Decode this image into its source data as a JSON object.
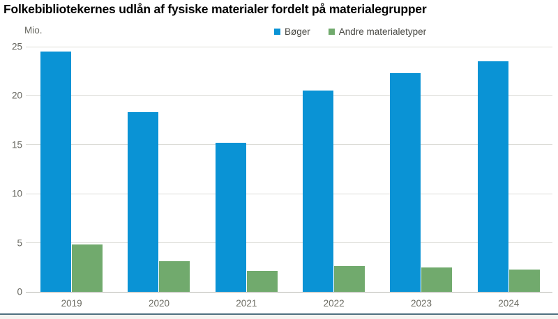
{
  "chart_data": {
    "type": "bar",
    "title": "Folkebibliotekernes udlån af fysiske materialer fordelt på materialegrupper",
    "unit_label": "Mio.",
    "xlabel": "",
    "ylabel": "Mio.",
    "categories": [
      "2019",
      "2020",
      "2021",
      "2022",
      "2023",
      "2024"
    ],
    "series": [
      {
        "name": "Bøger",
        "color": "#0a93d5",
        "values": [
          24.5,
          18.3,
          15.2,
          20.5,
          22.3,
          23.5
        ]
      },
      {
        "name": "Andre materialetyper",
        "color": "#71aa6d",
        "values": [
          4.8,
          3.1,
          2.1,
          2.6,
          2.5,
          2.3
        ]
      }
    ],
    "ylim": [
      0,
      25
    ],
    "yticks": [
      0,
      5,
      10,
      15,
      20,
      25
    ],
    "grid": true,
    "legend_position": "top-center",
    "colors": {
      "grid_line": "#dcdcd7",
      "zero_line": "#b9b9b2",
      "tick_text": "#65655e",
      "legend_text": "#4a4a45",
      "bottom_divider": "#4e7080"
    }
  }
}
